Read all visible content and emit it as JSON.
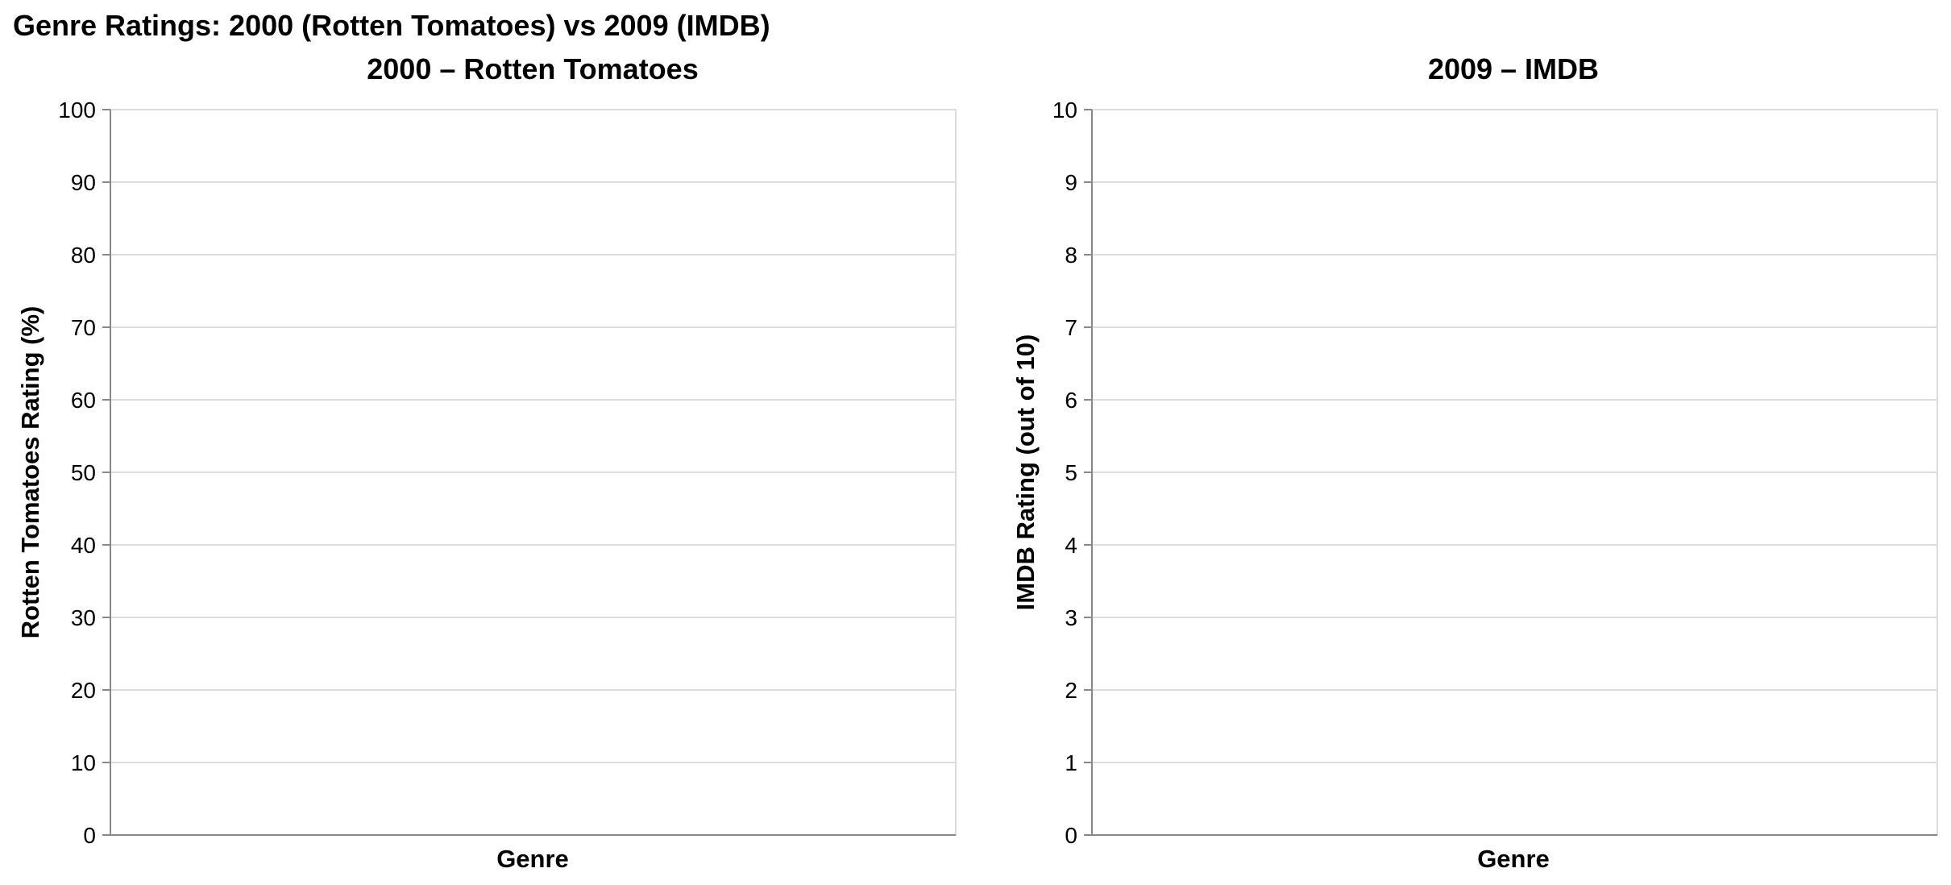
{
  "title": "Genre Ratings: 2000 (Rotten Tomatoes) vs 2009 (IMDB)",
  "chart_data": [
    {
      "type": "bar",
      "title": "2000 – Rotten Tomatoes",
      "xlabel": "Genre",
      "ylabel": "Rotten Tomatoes Rating (%)",
      "categories": [],
      "values": [],
      "ylim": [
        0,
        100
      ],
      "yticks": [
        0,
        10,
        20,
        30,
        40,
        50,
        60,
        70,
        80,
        90,
        100
      ],
      "grid": true
    },
    {
      "type": "bar",
      "title": "2009 – IMDB",
      "xlabel": "Genre",
      "ylabel": "IMDB Rating (out of 10)",
      "categories": [],
      "values": [],
      "ylim": [
        0,
        10
      ],
      "yticks": [
        0,
        1,
        2,
        3,
        4,
        5,
        6,
        7,
        8,
        9,
        10
      ],
      "grid": true
    }
  ]
}
